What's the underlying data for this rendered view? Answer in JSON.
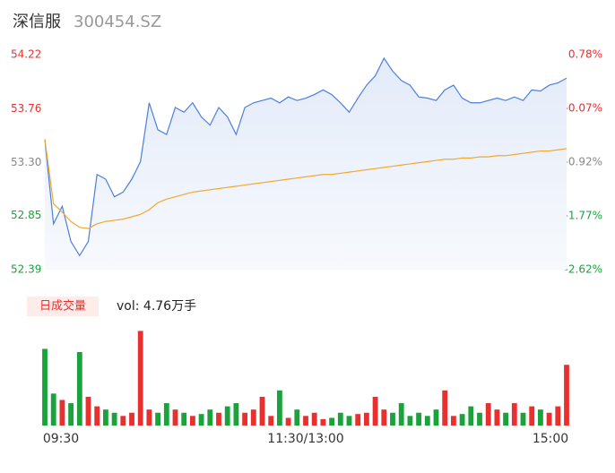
{
  "chart_data": {
    "type": "line",
    "title": "深信服",
    "subtitle": "300454.SZ",
    "volume_button": "日成交量",
    "volume_text": "vol: 4.76万手",
    "x": [
      0,
      4,
      8,
      12,
      16,
      20,
      24,
      28,
      32,
      36,
      40,
      44,
      48,
      52,
      56,
      60,
      64,
      68,
      72,
      76,
      80,
      84,
      88,
      92,
      96,
      100,
      104,
      108,
      112,
      116,
      120,
      124,
      128,
      132,
      136,
      140,
      144,
      148,
      152,
      156,
      160,
      164,
      168,
      172,
      176,
      180,
      184,
      188,
      192,
      196,
      200,
      204,
      208,
      212,
      216,
      220,
      224,
      228,
      232,
      236,
      240
    ],
    "xlim": [
      0,
      240
    ],
    "xticks": [
      {
        "value": 0,
        "label": "09:30"
      },
      {
        "value": 120,
        "label": "11:30/13:00"
      },
      {
        "value": 240,
        "label": "15:00"
      }
    ],
    "ylim": [
      52.39,
      54.22
    ],
    "yticks": [
      52.39,
      52.85,
      53.3,
      53.76,
      54.22
    ],
    "ytick_labels": [
      "52.39",
      "52.85",
      "53.30",
      "53.76",
      "54.22"
    ],
    "ytick_colors": [
      "#1aa33b",
      "#1aa33b",
      "#888888",
      "#e8312f",
      "#e8312f"
    ],
    "y2lim": [
      -2.62,
      0.78
    ],
    "y2ticks": [
      {
        "value": -2.62,
        "label": "-2.62%"
      },
      {
        "value": -1.77,
        "label": "-1.77%"
      },
      {
        "value": -0.92,
        "label": "-0.92%"
      },
      {
        "value": -0.07,
        "label": "-0.07%"
      },
      {
        "value": 0.78,
        "label": "0.78%"
      }
    ],
    "series": [
      {
        "name": "price",
        "color": "#4a7fe0",
        "values": [
          53.5,
          52.78,
          52.93,
          52.63,
          52.51,
          52.63,
          53.2,
          53.16,
          53.01,
          53.05,
          53.16,
          53.31,
          53.81,
          53.58,
          53.54,
          53.77,
          53.73,
          53.81,
          53.69,
          53.62,
          53.77,
          53.69,
          53.54,
          53.77,
          53.81,
          53.83,
          53.85,
          53.81,
          53.86,
          53.83,
          53.85,
          53.88,
          53.92,
          53.88,
          53.81,
          53.73,
          53.85,
          53.96,
          54.04,
          54.19,
          54.08,
          54.0,
          53.96,
          53.86,
          53.85,
          53.83,
          53.92,
          53.96,
          53.85,
          53.81,
          53.81,
          53.83,
          53.85,
          53.83,
          53.86,
          53.83,
          53.92,
          53.91,
          53.96,
          53.98,
          54.02
        ]
      },
      {
        "name": "average",
        "color": "#f0a92e",
        "values": [
          53.5,
          52.95,
          52.88,
          52.8,
          52.75,
          52.74,
          52.78,
          52.8,
          52.81,
          52.82,
          52.84,
          52.86,
          52.9,
          52.96,
          52.99,
          53.01,
          53.03,
          53.05,
          53.06,
          53.07,
          53.08,
          53.09,
          53.1,
          53.11,
          53.12,
          53.13,
          53.14,
          53.15,
          53.16,
          53.17,
          53.18,
          53.19,
          53.2,
          53.2,
          53.21,
          53.22,
          53.23,
          53.24,
          53.25,
          53.26,
          53.27,
          53.28,
          53.29,
          53.3,
          53.31,
          53.32,
          53.33,
          53.33,
          53.34,
          53.34,
          53.35,
          53.35,
          53.36,
          53.36,
          53.37,
          53.38,
          53.39,
          53.4,
          53.4,
          53.41,
          53.42
        ]
      }
    ],
    "volume": [
      1200,
      500,
      400,
      350,
      1150,
      450,
      300,
      250,
      200,
      150,
      200,
      1480,
      250,
      200,
      350,
      250,
      200,
      150,
      180,
      250,
      200,
      300,
      350,
      200,
      250,
      450,
      150,
      550,
      120,
      250,
      150,
      200,
      100,
      120,
      200,
      150,
      180,
      200,
      450,
      250,
      200,
      350,
      150,
      200,
      150,
      250,
      550,
      150,
      180,
      300,
      200,
      350,
      250,
      200,
      350,
      200,
      300,
      250,
      200,
      300,
      950
    ],
    "volume_lim": [
      0,
      1500
    ],
    "up_color": "#e8312f",
    "down_color": "#1aa33b"
  }
}
